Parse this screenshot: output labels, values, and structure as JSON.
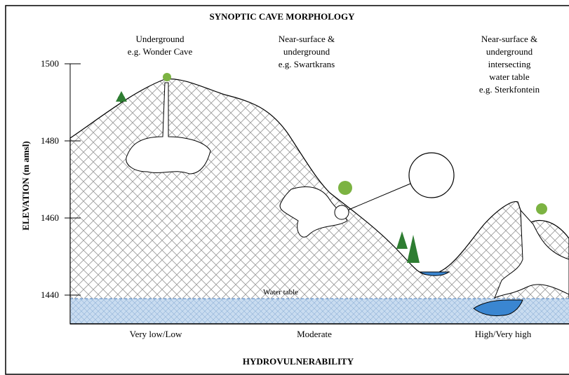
{
  "title": "SYNOPTIC CAVE MORPHOLOGY",
  "y_axis": {
    "label": "ELEVATION (m amsl)",
    "ticks": [
      1500,
      1480,
      1460,
      1440
    ]
  },
  "columns": [
    {
      "lines": [
        "Underground",
        "e.g. Wonder Cave"
      ]
    },
    {
      "lines": [
        "Near-surface &",
        "underground",
        "e.g. Swartkrans"
      ]
    },
    {
      "lines": [
        "Near-surface &",
        "underground",
        "intersecting",
        "water table",
        "e.g. Sterkfontein"
      ]
    }
  ],
  "water_table_label": "Water table",
  "hydrovulnerability": {
    "title": "HYDROVULNERABILITY",
    "levels": [
      "Very low/Low",
      "Moderate",
      "High/Very high"
    ]
  }
}
